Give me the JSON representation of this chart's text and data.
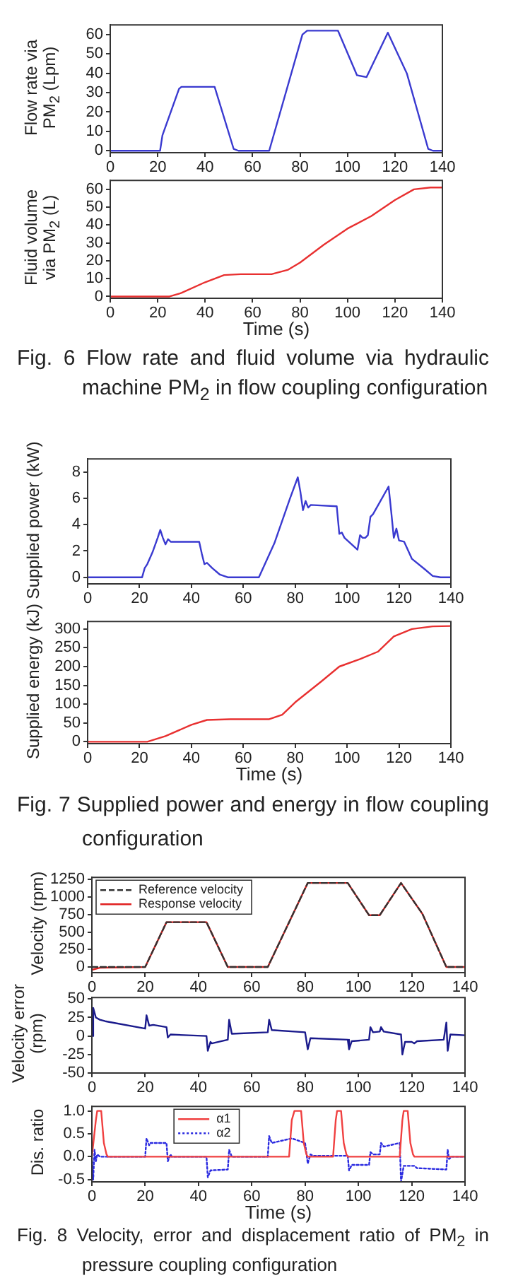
{
  "chart_data": [
    {
      "type": "line",
      "ylabel": "Flow rate via PM$_{2}$ (Lpm)",
      "xlim": [
        0,
        140
      ],
      "xticks": [
        0,
        20,
        40,
        60,
        80,
        100,
        120,
        140
      ],
      "ylim": [
        -1,
        65
      ],
      "yticks": [
        0,
        10,
        20,
        30,
        40,
        50,
        60
      ],
      "series": [
        {
          "color": "#3a3ad0",
          "x": [
            0,
            21,
            22,
            29,
            30,
            44,
            52,
            54,
            67,
            81,
            83,
            96,
            104,
            108,
            117,
            125,
            134,
            136,
            140
          ],
          "values": [
            0,
            0,
            8,
            32,
            33,
            33,
            1,
            0,
            0,
            60,
            62,
            62,
            39,
            38,
            61,
            40,
            1,
            0,
            0
          ]
        }
      ]
    },
    {
      "type": "line",
      "xlabel": "Time (s)",
      "ylabel": "Fluid volume via PM$_{2}$ (L)",
      "xlim": [
        0,
        140
      ],
      "xticks": [
        0,
        20,
        40,
        60,
        80,
        100,
        120,
        140
      ],
      "ylim": [
        -1,
        65
      ],
      "yticks": [
        0,
        10,
        20,
        30,
        40,
        50,
        60
      ],
      "annotations": [
        "Fig. 6 Flow rate and fluid volume via hydraulic machine PM$_{2}$ in flow coupling configuration"
      ],
      "series": [
        {
          "color": "#e83030",
          "x": [
            0,
            25,
            30,
            40,
            48,
            55,
            68,
            75,
            80,
            90,
            100,
            110,
            120,
            128,
            135,
            140
          ],
          "values": [
            0,
            0,
            2,
            8,
            12,
            12.5,
            12.5,
            15,
            19,
            29,
            38,
            45,
            54,
            60,
            61,
            61
          ]
        }
      ]
    },
    {
      "type": "line",
      "ylabel": "Supplied power (kW)",
      "xlim": [
        0,
        140
      ],
      "xticks": [
        0,
        20,
        40,
        60,
        80,
        100,
        120,
        140
      ],
      "ylim": [
        -0.5,
        9
      ],
      "yticks": [
        0,
        2,
        4,
        6,
        8
      ],
      "series": [
        {
          "color": "#3a3ad0",
          "x": [
            0,
            21,
            22,
            23,
            25,
            27,
            28,
            29,
            30,
            31,
            32,
            43,
            44,
            45,
            46,
            48,
            51,
            54,
            66,
            72,
            78,
            81,
            82,
            83,
            84,
            85,
            86,
            96,
            97,
            98,
            99,
            104,
            105,
            106,
            107,
            108,
            109,
            110,
            112,
            116,
            117,
            118,
            119,
            120,
            122,
            125,
            130,
            133,
            136,
            140
          ],
          "values": [
            0,
            0,
            0.7,
            1.0,
            1.9,
            3.0,
            3.6,
            3.0,
            2.5,
            2.9,
            2.7,
            2.7,
            1.8,
            1.0,
            1.1,
            0.7,
            0.2,
            0,
            0,
            2.6,
            6,
            7.6,
            6.5,
            5.1,
            5.8,
            5.3,
            5.5,
            5.4,
            3.3,
            3.4,
            3.0,
            2.1,
            3.2,
            3.0,
            3.0,
            3.2,
            4.6,
            4.8,
            5.5,
            6.9,
            5.0,
            3.0,
            3.7,
            2.8,
            2.7,
            1.4,
            0.6,
            0.1,
            0,
            0
          ]
        }
      ]
    },
    {
      "type": "line",
      "xlabel": "Time (s)",
      "ylabel": "Supplied energy (kJ)",
      "xlim": [
        0,
        140
      ],
      "xticks": [
        0,
        20,
        40,
        60,
        80,
        100,
        120,
        140
      ],
      "ylim": [
        -5,
        320
      ],
      "yticks": [
        0,
        50,
        100,
        150,
        200,
        250,
        300
      ],
      "annotations": [
        "Fig. 7 Supplied power and energy in flow coupling configuration"
      ],
      "series": [
        {
          "color": "#e83030",
          "x": [
            0,
            23,
            30,
            40,
            46,
            55,
            70,
            75,
            80,
            90,
            97,
            105,
            112,
            118,
            125,
            133,
            140
          ],
          "values": [
            0,
            0,
            15,
            45,
            58,
            60,
            60,
            72,
            105,
            160,
            200,
            220,
            240,
            280,
            300,
            307,
            308
          ]
        }
      ]
    },
    {
      "type": "line",
      "ylabel": "Velocity (rpm)",
      "xlim": [
        0,
        140
      ],
      "xticks": [
        0,
        20,
        40,
        60,
        80,
        100,
        120,
        140
      ],
      "ylim": [
        -80,
        1280
      ],
      "yticks": [
        0,
        250,
        500,
        750,
        1000,
        1250
      ],
      "legend": "top left",
      "series": [
        {
          "name": "Reference velocity",
          "color": "#333333",
          "line_style": "dashed",
          "x": [
            0,
            20,
            28,
            43,
            51,
            66,
            81,
            96,
            104,
            108,
            116,
            124,
            133,
            140
          ],
          "values": [
            0,
            0,
            640,
            640,
            0,
            0,
            1200,
            1200,
            740,
            740,
            1200,
            760,
            0,
            0
          ]
        },
        {
          "name": "Response velocity",
          "color": "#e02020",
          "x": [
            0,
            3,
            20,
            28,
            43,
            51,
            66,
            81,
            96,
            104,
            108,
            116,
            124,
            133,
            140
          ],
          "values": [
            -40,
            -10,
            0,
            640,
            640,
            0,
            0,
            1200,
            1200,
            740,
            740,
            1200,
            760,
            0,
            0
          ]
        }
      ]
    },
    {
      "type": "line",
      "ylabel": "Velocity error (rpm)",
      "xlim": [
        0,
        140
      ],
      "xticks": [
        0,
        20,
        40,
        60,
        80,
        100,
        120,
        140
      ],
      "ylim": [
        -50,
        52
      ],
      "yticks": [
        -50,
        -25,
        0,
        25,
        50
      ],
      "series": [
        {
          "color": "#1a1a8c",
          "x": [
            0,
            0.5,
            1.5,
            3,
            5,
            20,
            20.5,
            21.5,
            23,
            28,
            28.5,
            29.5,
            43,
            43.5,
            44.5,
            45,
            51,
            51.5,
            52.5,
            66,
            66.5,
            67.5,
            80,
            81,
            82,
            96,
            96.5,
            97.5,
            104,
            104.5,
            105.5,
            108,
            108.5,
            109.5,
            116,
            116.5,
            117.5,
            120,
            121,
            122,
            132,
            133,
            133.5,
            134.5,
            140
          ],
          "values": [
            0,
            38,
            25,
            22,
            20,
            10,
            28,
            14,
            15,
            12,
            -2,
            2,
            0,
            -20,
            -8,
            -10,
            -5,
            22,
            3,
            5,
            22,
            8,
            5,
            -18,
            -3,
            -5,
            -18,
            -7,
            -5,
            12,
            5,
            6,
            12,
            6,
            2,
            -25,
            -8,
            -8,
            -10,
            -7,
            -5,
            18,
            -20,
            2,
            1
          ]
        }
      ]
    },
    {
      "type": "line",
      "xlabel": "Time (s)",
      "ylabel": "Dis. ratio",
      "xlim": [
        0,
        140
      ],
      "xticks": [
        0,
        20,
        40,
        60,
        80,
        100,
        120,
        140
      ],
      "ylim": [
        -0.55,
        1.1
      ],
      "yticks": [
        {
          "value": -0.5,
          "label": "-0.5"
        },
        {
          "value": 0,
          "label": "0.0"
        },
        {
          "value": 0.5,
          "label": "0.5"
        },
        {
          "value": 1,
          "label": "1.0"
        }
      ],
      "legend": "top",
      "annotations": [
        "Fig. 8 Velocity, error and displacement ratio of PM$_{2}$ in pressure coupling configuration"
      ],
      "series": [
        {
          "name": "α1",
          "color": "#f04040",
          "x": [
            0,
            0.5,
            1.5,
            2,
            3.5,
            4.5,
            5.5,
            6,
            74,
            75,
            76,
            78.5,
            79.5,
            80.5,
            81,
            90.5,
            91.5,
            92,
            93.5,
            94.5,
            95.5,
            96,
            115.5,
            116.5,
            117,
            118.5,
            119.5,
            120.5,
            121,
            140
          ],
          "values": [
            0,
            0,
            0.8,
            1.0,
            1.0,
            0.3,
            0.05,
            0,
            0,
            0.8,
            1.0,
            1.0,
            0.3,
            0.05,
            0,
            0,
            0.8,
            1.0,
            1.0,
            0.3,
            0.05,
            0,
            0,
            0.8,
            1.0,
            1.0,
            0.3,
            0.05,
            0,
            0
          ]
        },
        {
          "name": "α2",
          "color": "#2a2ae0",
          "line_style": "dotted",
          "x": [
            0,
            0.5,
            1,
            1.5,
            2,
            3,
            20,
            20.5,
            21.5,
            22,
            28,
            28.5,
            29.5,
            30,
            43,
            43.5,
            44.5,
            51,
            51.5,
            52.5,
            66,
            66.5,
            67.5,
            75,
            80,
            81,
            82,
            83,
            96,
            96.5,
            97.5,
            104,
            104.5,
            105.5,
            108,
            108.5,
            109.5,
            115.5,
            116,
            117,
            121,
            122,
            133,
            133.5,
            134,
            135,
            140
          ],
          "values": [
            0,
            -0.5,
            0.15,
            -0.1,
            0.05,
            0,
            0,
            0.4,
            0.25,
            0.3,
            0.3,
            -0.1,
            0.05,
            0,
            0,
            -0.45,
            -0.3,
            -0.28,
            0.15,
            0,
            0,
            0.45,
            0.3,
            0.4,
            0.3,
            -0.15,
            0.05,
            0.02,
            0.02,
            -0.3,
            -0.18,
            -0.18,
            0.1,
            0.05,
            0.05,
            0.3,
            0.22,
            0.3,
            -0.55,
            -0.2,
            -0.2,
            -0.25,
            -0.28,
            0.15,
            -0.05,
            0,
            0
          ]
        }
      ]
    }
  ]
}
